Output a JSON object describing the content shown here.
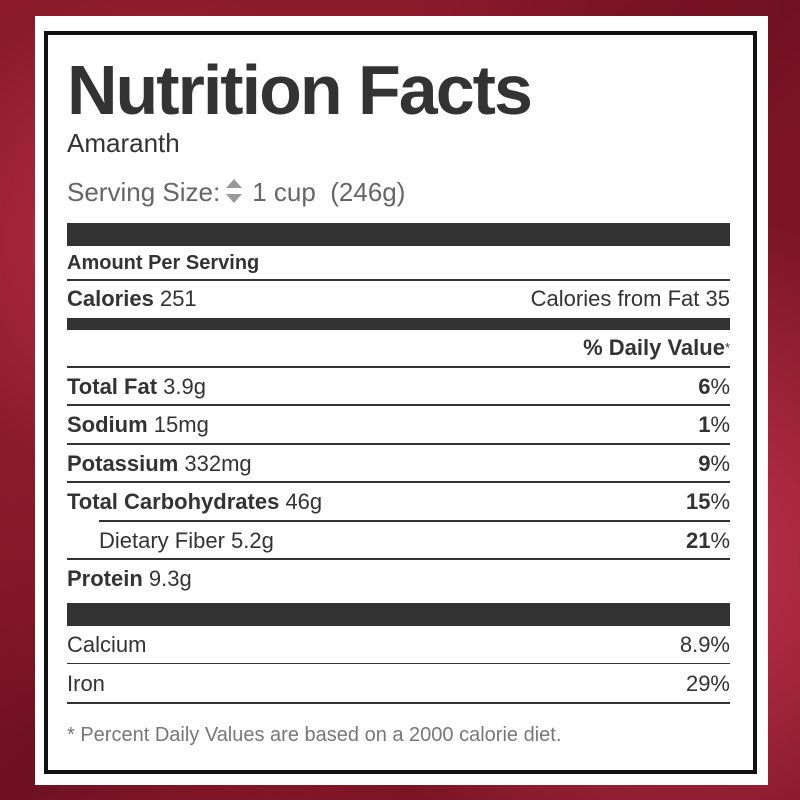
{
  "title": "Nutrition Facts",
  "food": "Amaranth",
  "serving": {
    "label": "Serving Size:",
    "icon": "sort-arrows-icon",
    "amount": "1 cup",
    "weight": "(246g)"
  },
  "amount_per_serving": "Amount Per Serving",
  "calories": {
    "label": "Calories",
    "value": "251",
    "fat_label": "Calories from Fat",
    "fat_value": "35"
  },
  "daily_value_header": "% Daily Value",
  "asterisk": "*",
  "nutrients": [
    {
      "label": "Total Fat",
      "amount": "3.9g",
      "dv": "6",
      "pct": "%"
    },
    {
      "label": "Sodium",
      "amount": "15mg",
      "dv": "1",
      "pct": "%"
    },
    {
      "label": "Potassium",
      "amount": "332mg",
      "dv": "9",
      "pct": "%"
    },
    {
      "label": "Total Carbohydrates",
      "amount": "46g",
      "dv": "15",
      "pct": "%"
    },
    {
      "label": "Dietary Fiber",
      "amount": "5.2g",
      "dv": "21",
      "pct": "%"
    },
    {
      "label": "Protein",
      "amount": "9.3g"
    }
  ],
  "minerals": [
    {
      "label": "Calcium",
      "value": "8.9%"
    },
    {
      "label": "Iron",
      "value": "29%"
    }
  ],
  "footnote": "* Percent Daily Values are based on a 2000 calorie diet."
}
